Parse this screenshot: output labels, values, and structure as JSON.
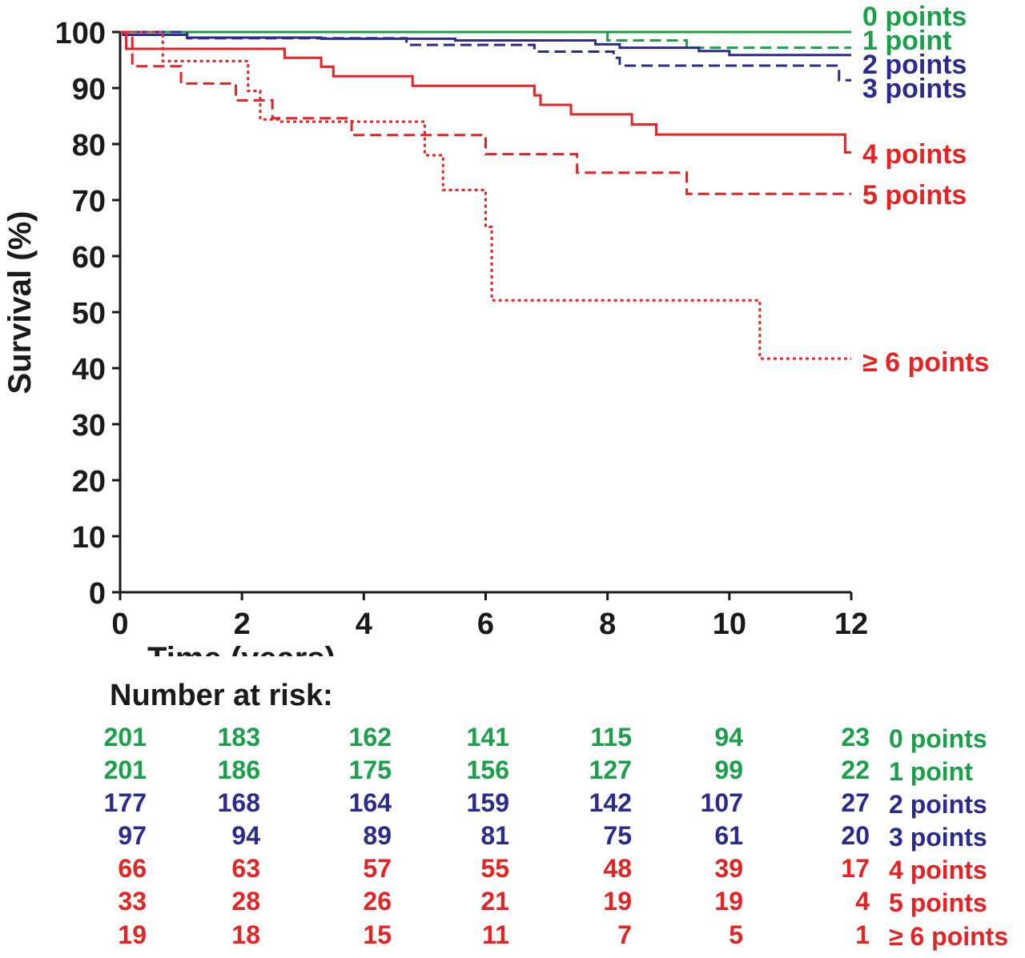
{
  "chart_data": {
    "type": "line",
    "subtype": "kaplan-meier step",
    "ylabel": "Survival (%)",
    "xlabel": "Time (years)",
    "xlim": [
      0,
      12
    ],
    "ylim": [
      0,
      100
    ],
    "xticks": [
      "0",
      "2",
      "4",
      "6",
      "8",
      "10",
      "12"
    ],
    "yticks": [
      "0",
      "10",
      "20",
      "30",
      "40",
      "50",
      "60",
      "70",
      "80",
      "90",
      "100"
    ],
    "grid": false,
    "series": [
      {
        "name": "0 points",
        "color": "#1aa04a",
        "dash": "solid",
        "x": [
          0,
          12
        ],
        "y": [
          100,
          100
        ]
      },
      {
        "name": "1 point",
        "color": "#1aa04a",
        "dash": "dashed",
        "x": [
          0,
          8.0,
          9.3,
          12
        ],
        "y": [
          100,
          98.5,
          97.2,
          97.2
        ]
      },
      {
        "name": "2 points",
        "color": "#2b2b8f",
        "dash": "solid",
        "x": [
          0,
          0.05,
          1.1,
          3.3,
          5.5,
          7.8,
          8.2,
          9.5,
          10.0,
          12
        ],
        "y": [
          100,
          99.5,
          99.0,
          98.8,
          98.5,
          97.8,
          97.2,
          96.6,
          95.9,
          95.9
        ]
      },
      {
        "name": "3 points",
        "color": "#2b2b8f",
        "dash": "dashed",
        "x": [
          0,
          1.1,
          4.7,
          6.8,
          8.1,
          8.2,
          11.8,
          12
        ],
        "y": [
          100,
          98.9,
          97.7,
          96.5,
          95.4,
          94.0,
          91.4,
          91.4
        ]
      },
      {
        "name": "4 points",
        "color": "#e52323",
        "dash": "solid",
        "x": [
          0,
          0.1,
          2.7,
          3.3,
          3.5,
          4.8,
          6.8,
          6.9,
          7.4,
          8.4,
          8.8,
          11.9,
          12
        ],
        "y": [
          100,
          97.0,
          95.4,
          93.8,
          92.1,
          90.4,
          88.7,
          87.0,
          85.3,
          83.5,
          81.7,
          78.5,
          78.5
        ]
      },
      {
        "name": "5 points",
        "color": "#e52323",
        "dash": "dashed",
        "x": [
          0,
          0.2,
          1.0,
          1.9,
          2.5,
          3.8,
          6.0,
          7.5,
          9.3,
          12
        ],
        "y": [
          100,
          93.9,
          90.8,
          87.8,
          84.6,
          81.6,
          78.2,
          74.9,
          71.1,
          71.1
        ]
      },
      {
        "name": "≥ 6 points",
        "color": "#e52323",
        "dash": "dotted",
        "x": [
          0,
          0.7,
          2.1,
          2.3,
          2.6,
          5.0,
          5.3,
          6.0,
          6.1,
          10.5,
          12
        ],
        "y": [
          100,
          94.8,
          89.5,
          84.4,
          84.0,
          78.0,
          71.8,
          65.2,
          52.1,
          41.7,
          41.7
        ]
      }
    ],
    "risk_table": {
      "title": "Number at risk:",
      "times": [
        0,
        2,
        4,
        6,
        8,
        10,
        12
      ],
      "rows": [
        {
          "label": "0 points",
          "color": "#1aa04a",
          "values": [
            "201",
            "183",
            "162",
            "141",
            "115",
            "94",
            "23"
          ]
        },
        {
          "label": "1 point",
          "color": "#1aa04a",
          "values": [
            "201",
            "186",
            "175",
            "156",
            "127",
            "99",
            "22"
          ]
        },
        {
          "label": "2 points",
          "color": "#2b2b8f",
          "values": [
            "177",
            "168",
            "164",
            "159",
            "142",
            "107",
            "27"
          ]
        },
        {
          "label": "3 points",
          "color": "#2b2b8f",
          "values": [
            "97",
            "94",
            "89",
            "81",
            "75",
            "61",
            "20"
          ]
        },
        {
          "label": "4 points",
          "color": "#e52323",
          "values": [
            "66",
            "63",
            "57",
            "55",
            "48",
            "39",
            "17"
          ]
        },
        {
          "label": "5 points",
          "color": "#e52323",
          "values": [
            "33",
            "28",
            "26",
            "21",
            "19",
            "19",
            "4"
          ]
        },
        {
          "label": "≥ 6 points",
          "color": "#e52323",
          "values": [
            "19",
            "18",
            "15",
            "11",
            "7",
            "5",
            "1"
          ]
        }
      ]
    }
  }
}
